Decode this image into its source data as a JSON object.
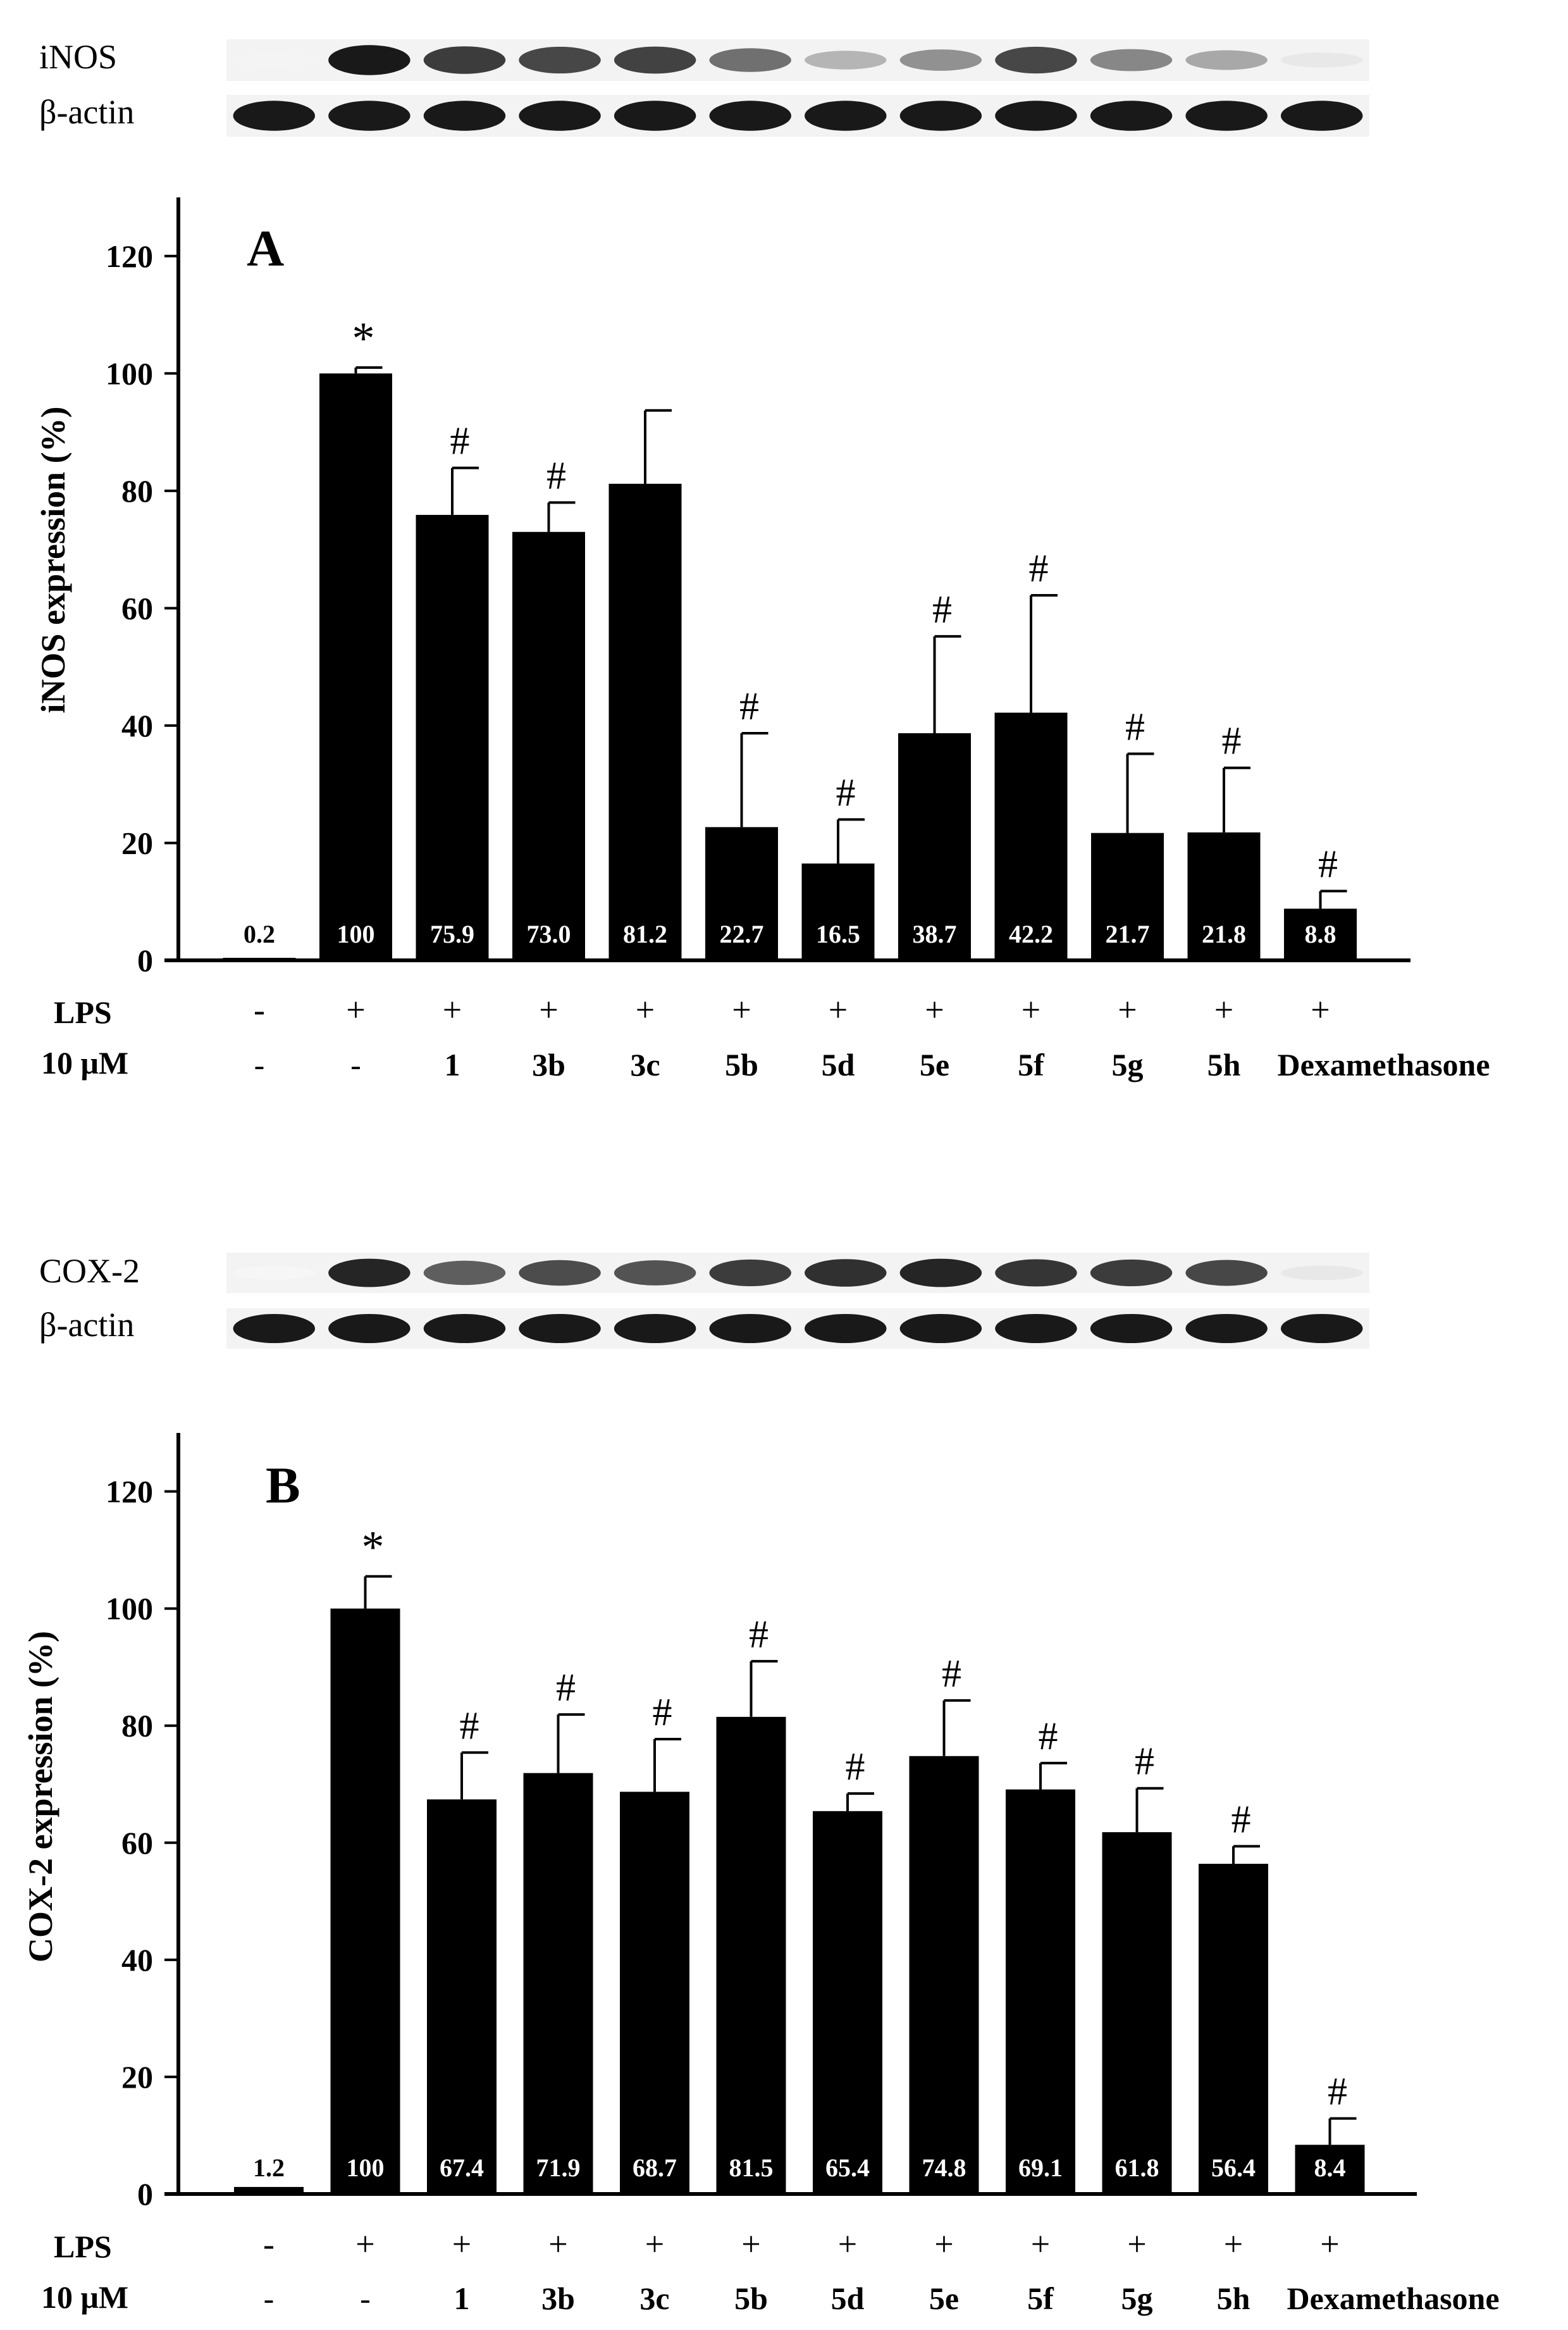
{
  "colors": {
    "bar": "#000000",
    "axis": "#000000",
    "label_on_bar": "#ffffff",
    "blot_bg": "#f3f3f3"
  },
  "chart_data": [
    {
      "type": "bar",
      "panel": "A",
      "ylabel": "iNOS expression (%)",
      "ylim": [
        0,
        130
      ],
      "yticks": [
        0,
        20,
        40,
        60,
        80,
        100,
        120
      ],
      "row_labels": [
        "LPS",
        "10 μM"
      ],
      "lps": [
        "-",
        "+",
        "+",
        "+",
        "+",
        "+",
        "+",
        "+",
        "+",
        "+",
        "+",
        "+"
      ],
      "treatment": [
        "-",
        "-",
        "1",
        "3b",
        "3c",
        "5b",
        "5d",
        "5e",
        "5f",
        "5g",
        "5h",
        "Dexamethasone"
      ],
      "values": [
        0.2,
        100,
        75.9,
        73.0,
        81.2,
        22.7,
        16.5,
        38.7,
        42.2,
        21.7,
        21.8,
        8.8
      ],
      "value_labels": [
        "0.2",
        "100",
        "75.9",
        "73.0",
        "81.2",
        "22.7",
        "16.5",
        "38.7",
        "42.2",
        "21.7",
        "21.8",
        "8.8"
      ],
      "errors": [
        0,
        1,
        8,
        5,
        12.5,
        16,
        7.5,
        16.5,
        20,
        13.5,
        11,
        3
      ],
      "significance": [
        "",
        "*",
        "#",
        "#",
        "",
        "#",
        "#",
        "#",
        "#",
        "#",
        "#",
        "#"
      ],
      "blot": {
        "target_label": "iNOS",
        "control_label": "β-actin",
        "target_intensity": [
          0.05,
          1.0,
          0.85,
          0.8,
          0.82,
          0.62,
          0.32,
          0.48,
          0.8,
          0.52,
          0.38,
          0.1
        ],
        "control_intensity": [
          1,
          1,
          1,
          1,
          1,
          1,
          1,
          1,
          1,
          1,
          1,
          1
        ]
      }
    },
    {
      "type": "bar",
      "panel": "B",
      "ylabel": "COX-2 expression (%)",
      "ylim": [
        0,
        130
      ],
      "yticks": [
        0,
        20,
        40,
        60,
        80,
        100,
        120
      ],
      "row_labels": [
        "LPS",
        "10 μM"
      ],
      "lps": [
        "-",
        "+",
        "+",
        "+",
        "+",
        "+",
        "+",
        "+",
        "+",
        "+",
        "+",
        "+"
      ],
      "treatment": [
        "-",
        "-",
        "1",
        "3b",
        "3c",
        "5b",
        "5d",
        "5e",
        "5f",
        "5g",
        "5h",
        "Dexamethasone"
      ],
      "values": [
        1.2,
        100,
        67.4,
        71.9,
        68.7,
        81.5,
        65.4,
        74.8,
        69.1,
        61.8,
        56.4,
        8.4
      ],
      "value_labels": [
        "1.2",
        "100",
        "67.4",
        "71.9",
        "68.7",
        "81.5",
        "65.4",
        "74.8",
        "69.1",
        "61.8",
        "56.4",
        "8.4"
      ],
      "errors": [
        0,
        5.5,
        8,
        10,
        9,
        9.5,
        3,
        9.5,
        4.5,
        7.5,
        3,
        4.5
      ],
      "significance": [
        "",
        "*",
        "#",
        "#",
        "#",
        "#",
        "#",
        "#",
        "#",
        "#",
        "#",
        "#"
      ],
      "blot": {
        "target_label": "COX-2",
        "control_label": "β-actin",
        "target_intensity": [
          0.04,
          0.95,
          0.7,
          0.78,
          0.75,
          0.85,
          0.9,
          0.95,
          0.88,
          0.85,
          0.8,
          0.1
        ],
        "control_intensity": [
          1,
          1,
          1,
          1,
          1,
          1,
          1,
          1,
          1,
          1,
          1,
          1
        ]
      }
    }
  ]
}
